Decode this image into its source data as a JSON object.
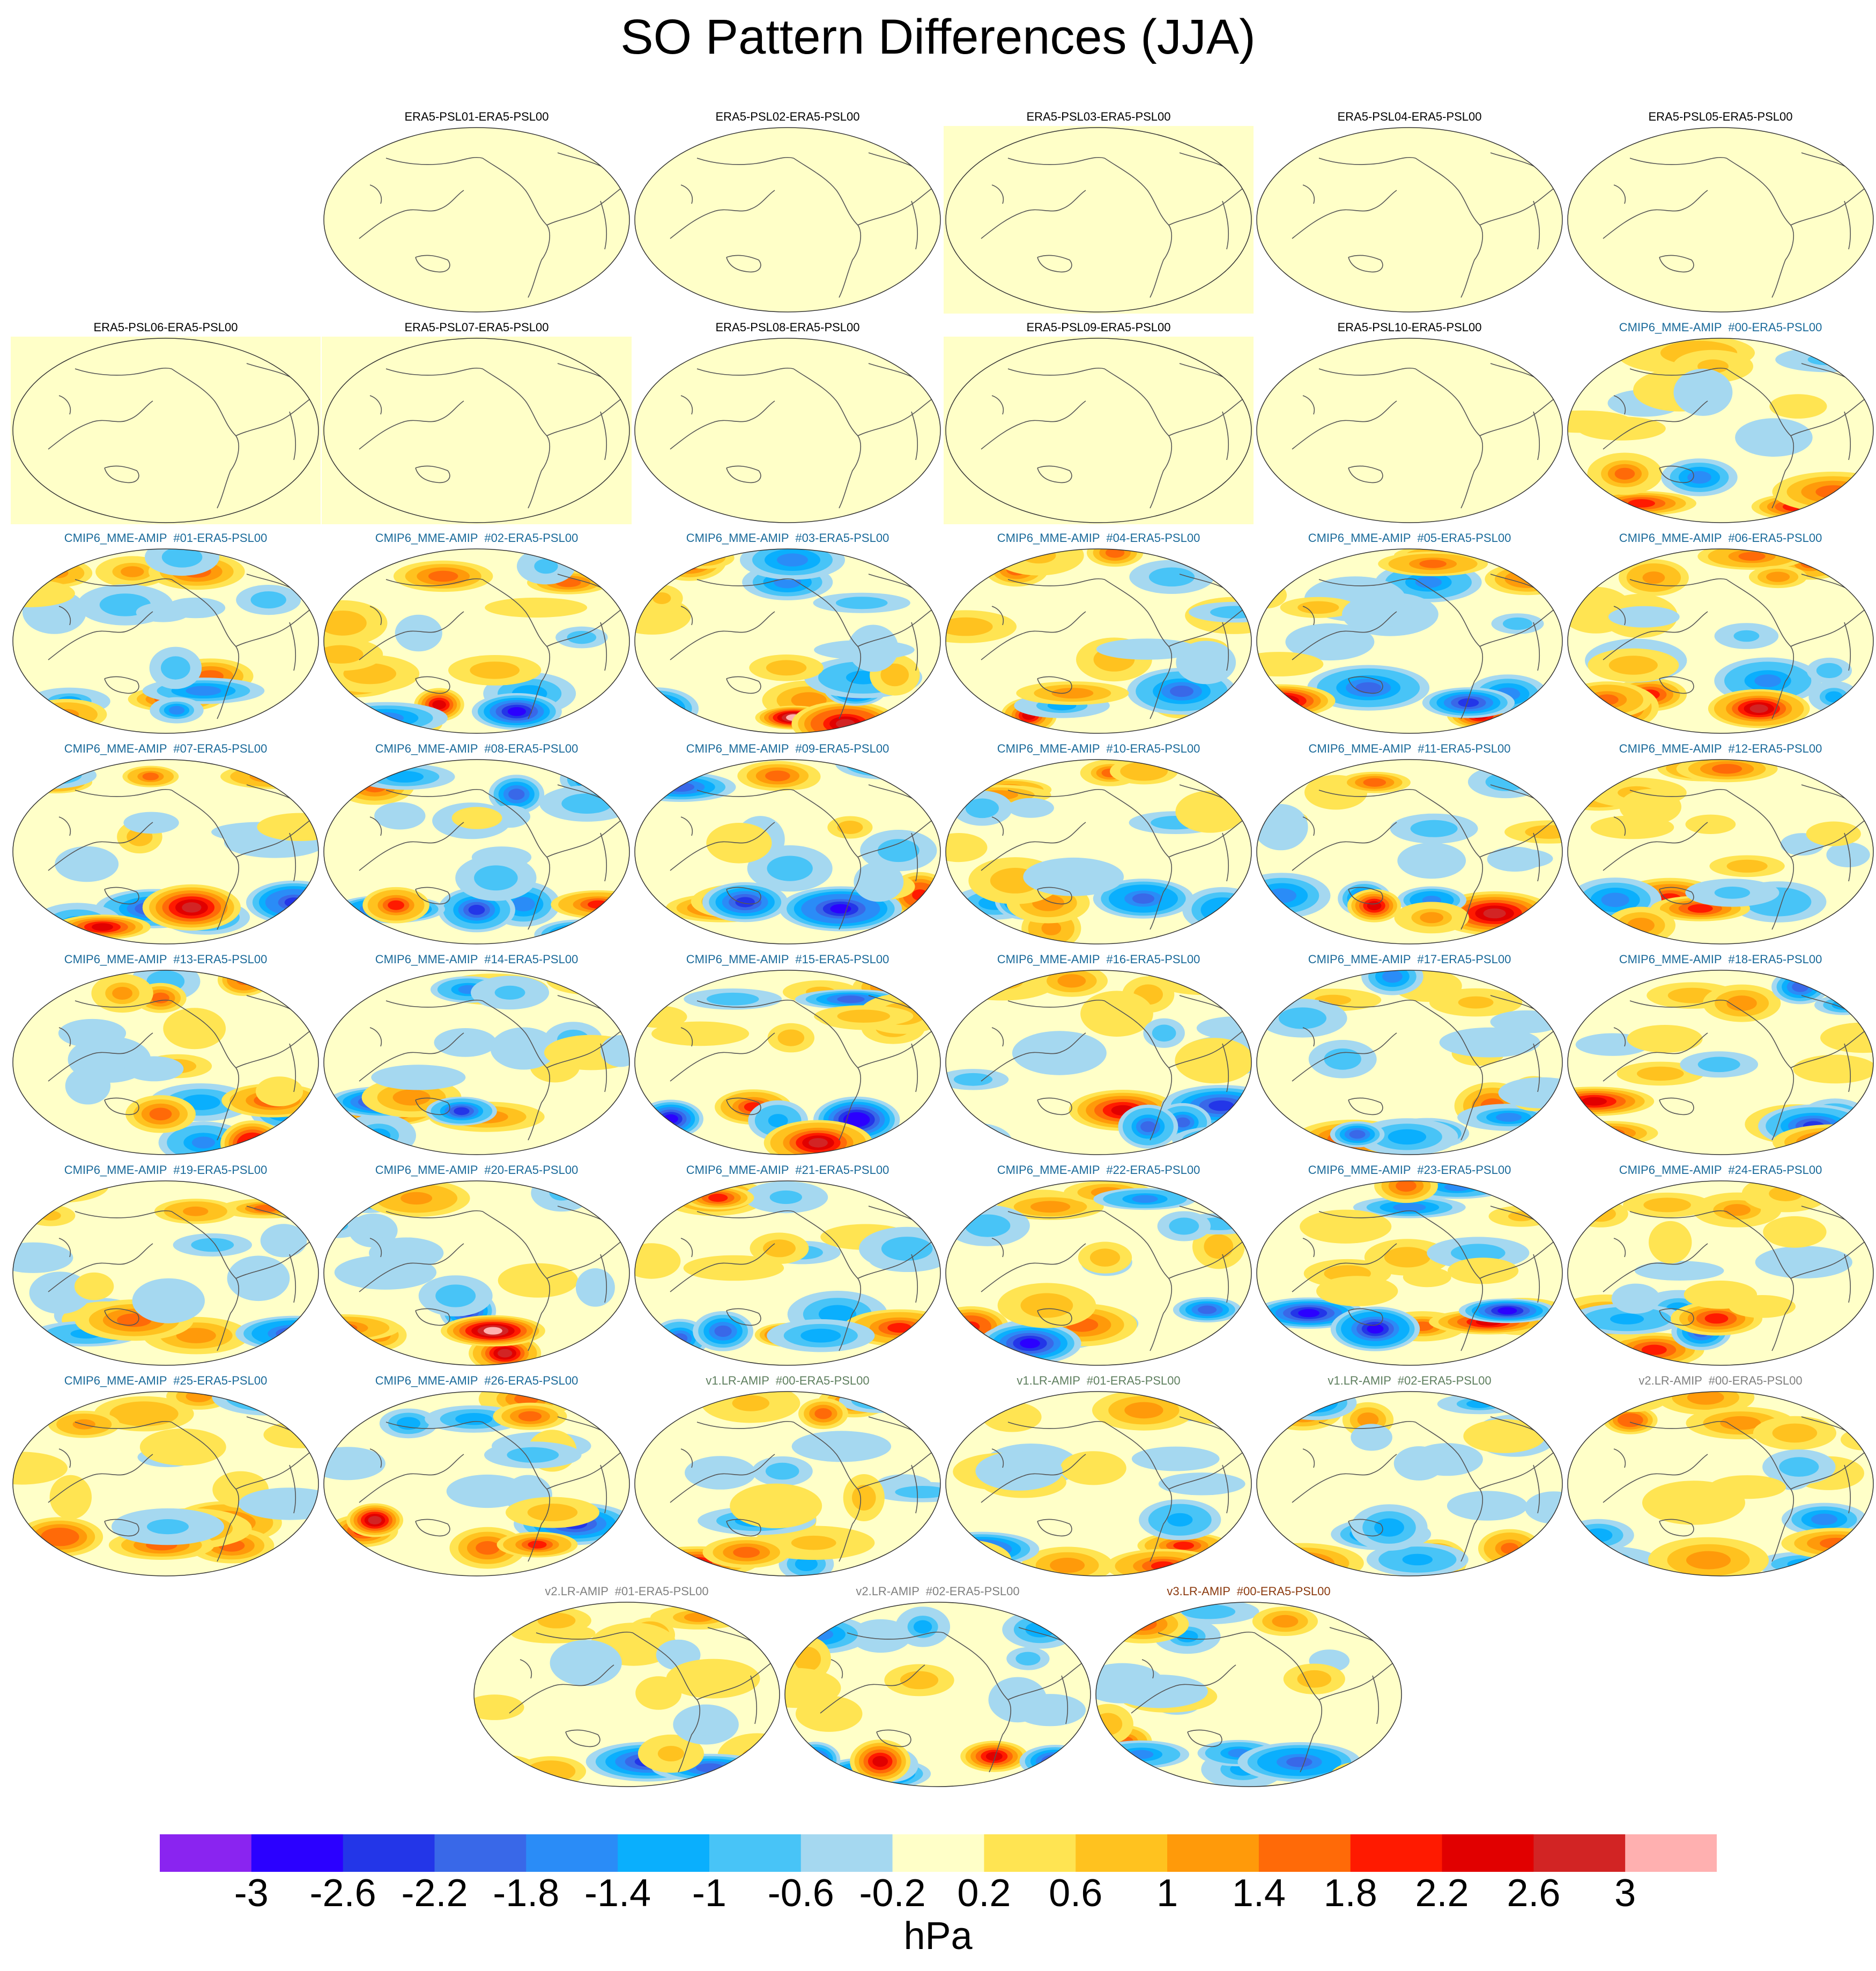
{
  "title": "SO Pattern Differences (JJA)",
  "colors": {
    "title_obs": "#000000",
    "title_cmip6": "#1a6a9a",
    "title_v1": "#5f7f5f",
    "title_v2": "#808080",
    "title_v3": "#8b3a0f",
    "map_background": "#ffffc8",
    "coastline": "#555555",
    "highlight_box": "#ffffc8"
  },
  "chart_data": {
    "type": "heatmap",
    "title": "SO Pattern Differences (JJA)",
    "colorbar": {
      "units": "hPa",
      "levels": [
        -3,
        -2.6,
        -2.2,
        -1.8,
        -1.4,
        -1,
        -0.6,
        -0.2,
        0.2,
        0.6,
        1,
        1.4,
        1.8,
        2.2,
        2.6,
        3
      ],
      "tick_labels": [
        "-3",
        "-2.6",
        "-2.2",
        "-1.8",
        "-1.4",
        "-1",
        "-0.6",
        "-0.2",
        "0.2",
        "0.6",
        "1",
        "1.4",
        "1.8",
        "2.2",
        "2.6",
        "3"
      ],
      "colors": [
        "#8a24f0",
        "#2b00ff",
        "#2336e8",
        "#3968e8",
        "#2a8cf7",
        "#0aaffd",
        "#48c4f7",
        "#a5d8f0",
        "#ffffc8",
        "#ffe452",
        "#ffc21f",
        "#ff9a0a",
        "#ff6a08",
        "#ff1a00",
        "#e10000",
        "#d22424",
        "#ffb0b0"
      ]
    },
    "panels": [
      {
        "title": "ERA5-PSL01-ERA5-PSL00",
        "group": "obs",
        "highlight": false,
        "intensity": 0,
        "seed": 1
      },
      {
        "title": "ERA5-PSL02-ERA5-PSL00",
        "group": "obs",
        "highlight": false,
        "intensity": 0,
        "seed": 2
      },
      {
        "title": "ERA5-PSL03-ERA5-PSL00",
        "group": "obs",
        "highlight": true,
        "intensity": 0,
        "seed": 3
      },
      {
        "title": "ERA5-PSL04-ERA5-PSL00",
        "group": "obs",
        "highlight": false,
        "intensity": 0,
        "seed": 4
      },
      {
        "title": "ERA5-PSL05-ERA5-PSL00",
        "group": "obs",
        "highlight": false,
        "intensity": 0,
        "seed": 5
      },
      {
        "title": "ERA5-PSL06-ERA5-PSL00",
        "group": "obs",
        "highlight": true,
        "intensity": 0,
        "seed": 6
      },
      {
        "title": "ERA5-PSL07-ERA5-PSL00",
        "group": "obs",
        "highlight": true,
        "intensity": 0,
        "seed": 7
      },
      {
        "title": "ERA5-PSL08-ERA5-PSL00",
        "group": "obs",
        "highlight": false,
        "intensity": 0,
        "seed": 8
      },
      {
        "title": "ERA5-PSL09-ERA5-PSL00",
        "group": "obs",
        "highlight": true,
        "intensity": 0,
        "seed": 9
      },
      {
        "title": "ERA5-PSL10-ERA5-PSL00",
        "group": "obs",
        "highlight": false,
        "intensity": 0,
        "seed": 10
      },
      {
        "title": "CMIP6_MME-AMIP  #00-ERA5-PSL00",
        "group": "cmip6",
        "highlight": false,
        "intensity": 0.8,
        "seed": 11
      },
      {
        "title": "CMIP6_MME-AMIP  #01-ERA5-PSL00",
        "group": "cmip6",
        "highlight": false,
        "intensity": 1.0,
        "seed": 12
      },
      {
        "title": "CMIP6_MME-AMIP  #02-ERA5-PSL00",
        "group": "cmip6",
        "highlight": false,
        "intensity": 1.0,
        "seed": 13
      },
      {
        "title": "CMIP6_MME-AMIP  #03-ERA5-PSL00",
        "group": "cmip6",
        "highlight": false,
        "intensity": 1.1,
        "seed": 14
      },
      {
        "title": "CMIP6_MME-AMIP  #04-ERA5-PSL00",
        "group": "cmip6",
        "highlight": false,
        "intensity": 1.0,
        "seed": 15
      },
      {
        "title": "CMIP6_MME-AMIP  #05-ERA5-PSL00",
        "group": "cmip6",
        "highlight": false,
        "intensity": 1.0,
        "seed": 16
      },
      {
        "title": "CMIP6_MME-AMIP  #06-ERA5-PSL00",
        "group": "cmip6",
        "highlight": false,
        "intensity": 1.1,
        "seed": 17
      },
      {
        "title": "CMIP6_MME-AMIP  #07-ERA5-PSL00",
        "group": "cmip6",
        "highlight": false,
        "intensity": 1.0,
        "seed": 18
      },
      {
        "title": "CMIP6_MME-AMIP  #08-ERA5-PSL00",
        "group": "cmip6",
        "highlight": false,
        "intensity": 1.0,
        "seed": 19
      },
      {
        "title": "CMIP6_MME-AMIP  #09-ERA5-PSL00",
        "group": "cmip6",
        "highlight": false,
        "intensity": 1.1,
        "seed": 20
      },
      {
        "title": "CMIP6_MME-AMIP  #10-ERA5-PSL00",
        "group": "cmip6",
        "highlight": false,
        "intensity": 0.9,
        "seed": 21
      },
      {
        "title": "CMIP6_MME-AMIP  #11-ERA5-PSL00",
        "group": "cmip6",
        "highlight": false,
        "intensity": 0.9,
        "seed": 22
      },
      {
        "title": "CMIP6_MME-AMIP  #12-ERA5-PSL00",
        "group": "cmip6",
        "highlight": false,
        "intensity": 0.9,
        "seed": 23
      },
      {
        "title": "CMIP6_MME-AMIP  #13-ERA5-PSL00",
        "group": "cmip6",
        "highlight": false,
        "intensity": 0.9,
        "seed": 24
      },
      {
        "title": "CMIP6_MME-AMIP  #14-ERA5-PSL00",
        "group": "cmip6",
        "highlight": false,
        "intensity": 0.9,
        "seed": 25
      },
      {
        "title": "CMIP6_MME-AMIP  #15-ERA5-PSL00",
        "group": "cmip6",
        "highlight": false,
        "intensity": 1.1,
        "seed": 26
      },
      {
        "title": "CMIP6_MME-AMIP  #16-ERA5-PSL00",
        "group": "cmip6",
        "highlight": false,
        "intensity": 0.9,
        "seed": 27
      },
      {
        "title": "CMIP6_MME-AMIP  #17-ERA5-PSL00",
        "group": "cmip6",
        "highlight": false,
        "intensity": 0.9,
        "seed": 28
      },
      {
        "title": "CMIP6_MME-AMIP  #18-ERA5-PSL00",
        "group": "cmip6",
        "highlight": false,
        "intensity": 1.0,
        "seed": 29
      },
      {
        "title": "CMIP6_MME-AMIP  #19-ERA5-PSL00",
        "group": "cmip6",
        "highlight": false,
        "intensity": 0.9,
        "seed": 30
      },
      {
        "title": "CMIP6_MME-AMIP  #20-ERA5-PSL00",
        "group": "cmip6",
        "highlight": false,
        "intensity": 1.1,
        "seed": 31
      },
      {
        "title": "CMIP6_MME-AMIP  #21-ERA5-PSL00",
        "group": "cmip6",
        "highlight": false,
        "intensity": 1.0,
        "seed": 32
      },
      {
        "title": "CMIP6_MME-AMIP  #22-ERA5-PSL00",
        "group": "cmip6",
        "highlight": false,
        "intensity": 1.0,
        "seed": 33
      },
      {
        "title": "CMIP6_MME-AMIP  #23-ERA5-PSL00",
        "group": "cmip6",
        "highlight": false,
        "intensity": 1.0,
        "seed": 34
      },
      {
        "title": "CMIP6_MME-AMIP  #24-ERA5-PSL00",
        "group": "cmip6",
        "highlight": false,
        "intensity": 0.8,
        "seed": 35
      },
      {
        "title": "CMIP6_MME-AMIP  #25-ERA5-PSL00",
        "group": "cmip6",
        "highlight": false,
        "intensity": 0.8,
        "seed": 36
      },
      {
        "title": "CMIP6_MME-AMIP  #26-ERA5-PSL00",
        "group": "cmip6",
        "highlight": false,
        "intensity": 1.0,
        "seed": 37
      },
      {
        "title": "v1.LR-AMIP  #00-ERA5-PSL00",
        "group": "v1",
        "highlight": false,
        "intensity": 0.8,
        "seed": 38
      },
      {
        "title": "v1.LR-AMIP  #01-ERA5-PSL00",
        "group": "v1",
        "highlight": false,
        "intensity": 0.8,
        "seed": 39
      },
      {
        "title": "v1.LR-AMIP  #02-ERA5-PSL00",
        "group": "v1",
        "highlight": false,
        "intensity": 0.8,
        "seed": 40
      },
      {
        "title": "v2.LR-AMIP  #00-ERA5-PSL00",
        "group": "v2",
        "highlight": false,
        "intensity": 0.9,
        "seed": 41
      },
      {
        "title": "v2.LR-AMIP  #01-ERA5-PSL00",
        "group": "v2",
        "highlight": false,
        "intensity": 0.8,
        "seed": 42
      },
      {
        "title": "v2.LR-AMIP  #02-ERA5-PSL00",
        "group": "v2",
        "highlight": false,
        "intensity": 0.9,
        "seed": 43
      },
      {
        "title": "v3.LR-AMIP  #00-ERA5-PSL00",
        "group": "v3",
        "highlight": false,
        "intensity": 0.8,
        "seed": 44
      }
    ]
  }
}
